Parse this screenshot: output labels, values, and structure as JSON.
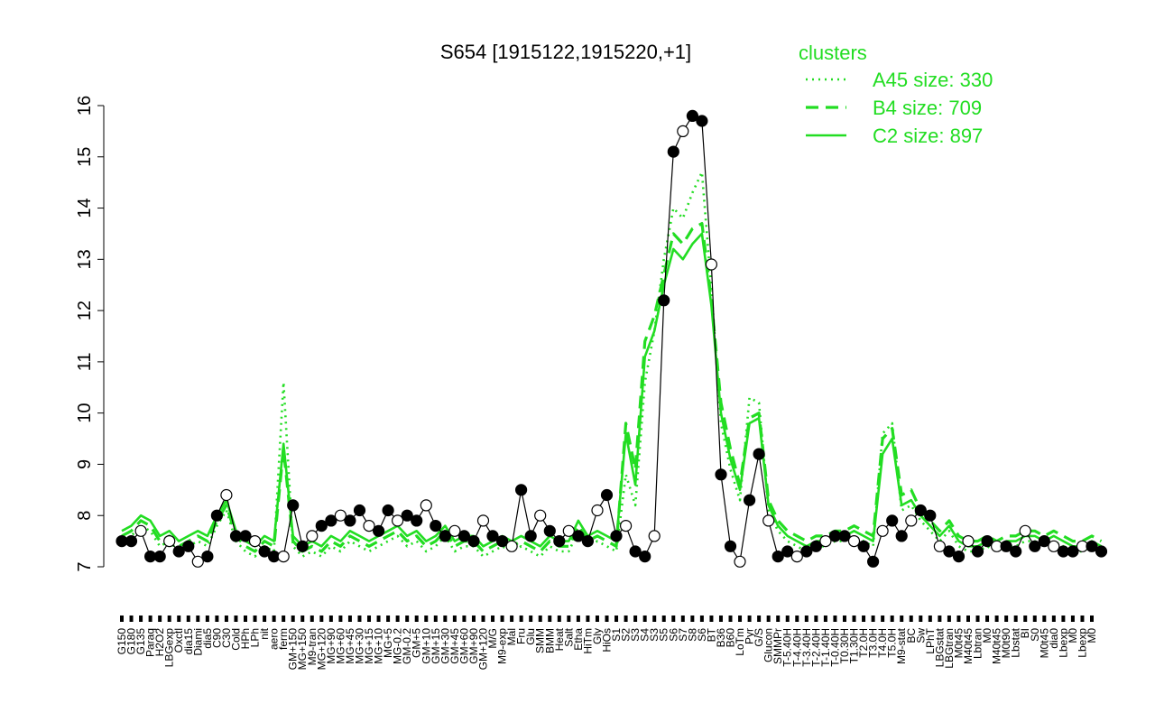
{
  "chart_data": {
    "type": "line",
    "title": "S654 [1915122,1915220,+1]",
    "xlabel": "",
    "ylabel": "",
    "ylim": [
      7,
      16
    ],
    "yticks": [
      7,
      8,
      9,
      10,
      11,
      12,
      13,
      14,
      15,
      16
    ],
    "xtick_labels": [
      "G150",
      "G180",
      "G135",
      "Paraq",
      "H2O2",
      "LBGexp",
      "Oxctl",
      "dia15",
      "Diami",
      "dia5",
      "C90",
      "C30",
      "Cold",
      "HPh",
      "LPh",
      "nit",
      "aero",
      "ferm",
      "GM+150",
      "MG+150",
      "M9-tran",
      "MG+120",
      "MG+90",
      "MG+60",
      "MG+45",
      "MG+30",
      "MG+15",
      "MG+10",
      "MG+5",
      "MG-0.2",
      "GM-0.2",
      "GM+5",
      "GM+10",
      "GM+15",
      "GM+30",
      "GM+45",
      "GM+60",
      "GM+90",
      "GM+120",
      "M/G",
      "M9-exp",
      "Mal",
      "Fru",
      "Glu",
      "SMM",
      "BMM",
      "Heat",
      "Salt",
      "Etha",
      "HiTm",
      "Gly",
      "HiOs",
      "S1",
      "S2",
      "S3",
      "S4",
      "S3",
      "S5",
      "S6",
      "S7",
      "S8",
      "S6",
      "BT",
      "B36",
      "B60",
      "LoTm",
      "Pyr",
      "G/S",
      "Glucon",
      "SMMPr",
      "T-5.40H",
      "T-4.40H",
      "T-3.40H",
      "T-2.40H",
      "T-1.40H",
      "T-0.40H",
      "T0.30H",
      "T1.30H",
      "T2.0H",
      "T3.0H",
      "T4.0H",
      "T5.0H",
      "M9-stat",
      "BC",
      "Sw",
      "LPhT",
      "LBGstat",
      "LBGtran",
      "M0t45",
      "M40t45",
      "Lbtran",
      "M0",
      "M40t45",
      "M0t90",
      "Lbstat",
      "BI",
      "S0",
      "M0t45",
      "dia0",
      "Lbexp",
      "M0",
      "Lbexp",
      "M0"
    ],
    "legend": {
      "title": "clusters",
      "position": "top-right",
      "entries": [
        {
          "label": "A45 size: 330",
          "style": "dotted",
          "color": "#22dd22"
        },
        {
          "label": "B4 size: 709",
          "style": "dashed",
          "color": "#22dd22"
        },
        {
          "label": "C2 size: 897",
          "style": "solid",
          "color": "#22dd22"
        }
      ]
    },
    "series": [
      {
        "style": "solid",
        "color": "#22dd22",
        "values": [
          7.7,
          7.8,
          8.0,
          7.9,
          7.6,
          7.7,
          7.5,
          7.6,
          7.7,
          7.6,
          8.0,
          8.3,
          7.7,
          7.5,
          7.4,
          7.6,
          7.5,
          9.4,
          7.6,
          7.4,
          7.5,
          7.4,
          7.6,
          7.5,
          7.7,
          7.6,
          7.5,
          7.6,
          7.7,
          7.8,
          7.6,
          7.7,
          7.5,
          7.6,
          7.8,
          7.5,
          7.6,
          7.6,
          7.4,
          7.5,
          7.6,
          7.5,
          7.6,
          7.5,
          7.4,
          7.6,
          7.5,
          7.5,
          7.9,
          7.6,
          7.7,
          7.6,
          7.5,
          9.6,
          8.6,
          11.1,
          11.6,
          12.5,
          13.2,
          13.0,
          13.3,
          13.5,
          12.1,
          10.0,
          9.1,
          8.5,
          9.8,
          9.9,
          8.2,
          7.8,
          7.6,
          7.5,
          7.4,
          7.5,
          7.5,
          7.6,
          7.6,
          7.7,
          7.6,
          7.5,
          9.2,
          9.5,
          8.2,
          8.3,
          8.0,
          7.8,
          7.6,
          7.8,
          7.5,
          7.4,
          7.4,
          7.5,
          7.4,
          7.5,
          7.5,
          7.6,
          7.6,
          7.5,
          7.6,
          7.5,
          7.4,
          7.4,
          7.5,
          7.4
        ]
      },
      {
        "style": "dashed",
        "color": "#22dd22",
        "values": [
          7.6,
          7.7,
          7.9,
          7.8,
          7.5,
          7.6,
          7.4,
          7.5,
          7.6,
          7.5,
          7.9,
          8.2,
          7.6,
          7.4,
          7.3,
          7.5,
          7.4,
          9.3,
          7.5,
          7.3,
          7.4,
          7.3,
          7.5,
          7.4,
          7.6,
          7.5,
          7.4,
          7.5,
          7.6,
          7.7,
          7.5,
          7.6,
          7.4,
          7.5,
          7.7,
          7.4,
          7.5,
          7.5,
          7.3,
          7.4,
          7.5,
          7.4,
          7.5,
          7.4,
          7.3,
          7.5,
          7.4,
          7.4,
          7.8,
          7.5,
          7.6,
          7.5,
          7.4,
          9.8,
          8.9,
          11.4,
          11.9,
          12.7,
          13.5,
          13.3,
          13.6,
          13.7,
          12.2,
          10.2,
          9.3,
          8.6,
          9.9,
          10.0,
          8.3,
          7.9,
          7.7,
          7.6,
          7.5,
          7.6,
          7.6,
          7.7,
          7.7,
          7.8,
          7.7,
          7.6,
          9.5,
          9.7,
          8.4,
          8.5,
          8.1,
          7.9,
          7.7,
          7.9,
          7.6,
          7.5,
          7.5,
          7.6,
          7.5,
          7.6,
          7.6,
          7.7,
          7.7,
          7.6,
          7.7,
          7.6,
          7.5,
          7.5,
          7.6,
          7.5
        ]
      },
      {
        "style": "dotted",
        "color": "#22dd22",
        "values": [
          7.5,
          7.6,
          7.8,
          7.7,
          7.4,
          7.5,
          7.3,
          7.4,
          7.5,
          7.4,
          7.8,
          8.1,
          7.5,
          7.3,
          7.2,
          7.4,
          7.3,
          10.6,
          7.4,
          7.2,
          7.3,
          7.2,
          7.4,
          7.3,
          7.5,
          7.4,
          7.3,
          7.4,
          7.5,
          7.6,
          7.4,
          7.5,
          7.3,
          7.4,
          7.6,
          7.3,
          7.4,
          7.4,
          7.2,
          7.3,
          7.4,
          7.3,
          7.4,
          7.3,
          7.2,
          7.4,
          7.3,
          7.3,
          7.7,
          7.4,
          7.5,
          7.4,
          7.3,
          8.8,
          8.2,
          10.6,
          11.6,
          13.0,
          14.0,
          13.8,
          14.3,
          14.7,
          12.4,
          9.8,
          8.9,
          8.3,
          10.3,
          10.2,
          8.1,
          7.7,
          7.5,
          7.4,
          7.3,
          7.4,
          7.4,
          7.5,
          7.5,
          7.6,
          7.5,
          7.4,
          9.6,
          9.8,
          8.1,
          8.2,
          7.9,
          7.7,
          7.5,
          7.7,
          7.4,
          7.3,
          7.3,
          7.4,
          7.3,
          7.4,
          7.4,
          7.5,
          7.5,
          7.4,
          7.5,
          7.4,
          7.3,
          7.3,
          7.4,
          7.3
        ]
      },
      {
        "style": "points",
        "color": "#000000",
        "values": [
          7.5,
          7.5,
          7.7,
          7.2,
          7.2,
          7.5,
          7.3,
          7.4,
          7.1,
          7.2,
          8.0,
          8.4,
          7.6,
          7.6,
          7.5,
          7.3,
          7.2,
          7.2,
          8.2,
          7.4,
          7.6,
          7.8,
          7.9,
          8.0,
          7.9,
          8.1,
          7.8,
          7.7,
          8.1,
          7.9,
          8.0,
          7.9,
          8.2,
          7.8,
          7.6,
          7.7,
          7.6,
          7.5,
          7.9,
          7.6,
          7.5,
          7.4,
          8.5,
          7.6,
          8.0,
          7.7,
          7.5,
          7.7,
          7.6,
          7.5,
          8.1,
          8.4,
          7.6,
          7.8,
          7.3,
          7.2,
          7.6,
          12.2,
          15.1,
          15.5,
          15.8,
          15.7,
          12.9,
          8.8,
          7.4,
          7.1,
          8.3,
          9.2,
          7.9,
          7.2,
          7.3,
          7.2,
          7.3,
          7.4,
          7.5,
          7.6,
          7.6,
          7.5,
          7.4,
          7.1,
          7.7,
          7.9,
          7.6,
          7.9,
          8.1,
          8.0,
          7.4,
          7.3,
          7.2,
          7.5,
          7.3,
          7.5,
          7.4,
          7.4,
          7.3,
          7.7,
          7.4,
          7.5,
          7.4,
          7.3,
          7.3,
          7.4,
          7.4,
          7.3
        ]
      }
    ]
  }
}
